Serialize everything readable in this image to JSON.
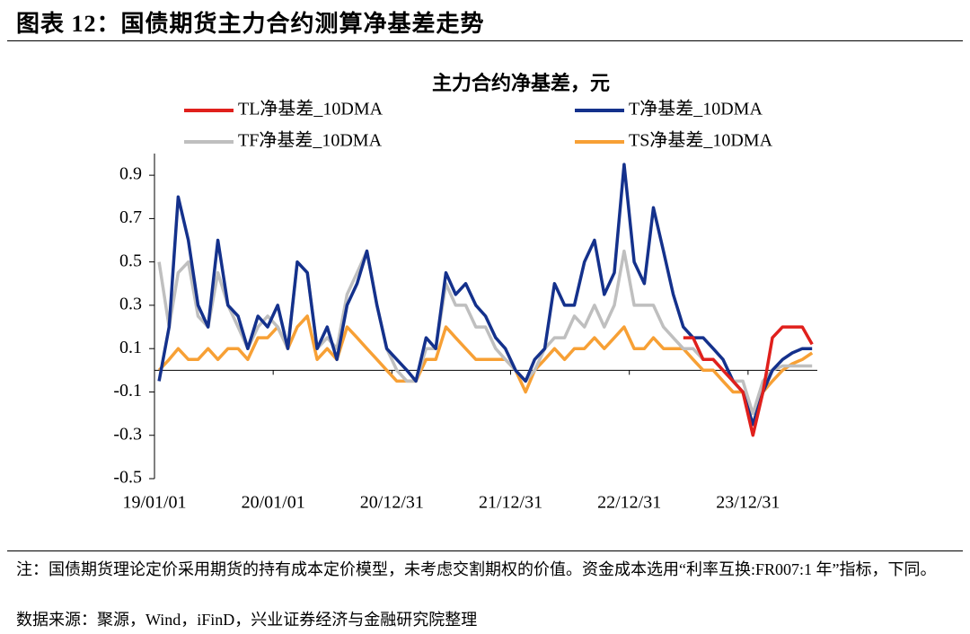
{
  "header": {
    "title": "图表 12：国债期货主力合约测算净基差走势"
  },
  "chart_data": {
    "type": "line",
    "title": "主力合约净基差，元",
    "x": [
      "19/01/15",
      "19/02/15",
      "19/03/15",
      "19/04/15",
      "19/05/15",
      "19/06/15",
      "19/07/15",
      "19/08/15",
      "19/09/15",
      "19/10/15",
      "19/11/15",
      "19/12/15",
      "20/01/15",
      "20/02/15",
      "20/03/15",
      "20/04/15",
      "20/05/15",
      "20/06/15",
      "20/07/15",
      "20/08/15",
      "20/09/15",
      "20/10/15",
      "20/11/15",
      "20/12/15",
      "21/01/15",
      "21/02/15",
      "21/03/15",
      "21/04/15",
      "21/05/15",
      "21/06/15",
      "21/07/15",
      "21/08/15",
      "21/09/15",
      "21/10/15",
      "21/11/15",
      "21/12/15",
      "22/01/15",
      "22/02/15",
      "22/03/15",
      "22/04/15",
      "22/05/15",
      "22/06/15",
      "22/07/15",
      "22/08/15",
      "22/09/15",
      "22/10/15",
      "22/11/15",
      "22/12/15",
      "23/01/15",
      "23/02/15",
      "23/03/15",
      "23/04/15",
      "23/05/15",
      "23/06/15",
      "23/07/15",
      "23/08/15",
      "23/09/15",
      "23/10/15",
      "23/11/15",
      "23/12/15",
      "24/01/15",
      "24/02/15",
      "24/03/15",
      "24/04/15",
      "24/05/15",
      "24/06/15",
      "24/07/15"
    ],
    "series": [
      {
        "name": "TL净基差_10DMA",
        "color": "#e0201c",
        "values": [
          null,
          null,
          null,
          null,
          null,
          null,
          null,
          null,
          null,
          null,
          null,
          null,
          null,
          null,
          null,
          null,
          null,
          null,
          null,
          null,
          null,
          null,
          null,
          null,
          null,
          null,
          null,
          null,
          null,
          null,
          null,
          null,
          null,
          null,
          null,
          null,
          null,
          null,
          null,
          null,
          null,
          null,
          null,
          null,
          null,
          null,
          null,
          null,
          null,
          null,
          null,
          null,
          null,
          0.15,
          0.15,
          0.05,
          0.05,
          0.0,
          -0.05,
          -0.1,
          -0.3,
          -0.1,
          0.15,
          0.2,
          0.2,
          0.2,
          0.12
        ]
      },
      {
        "name": "T净基差_10DMA",
        "color": "#14318c",
        "values": [
          -0.05,
          0.2,
          0.8,
          0.6,
          0.3,
          0.2,
          0.6,
          0.3,
          0.25,
          0.1,
          0.25,
          0.2,
          0.3,
          0.1,
          0.5,
          0.45,
          0.1,
          0.2,
          0.05,
          0.3,
          0.4,
          0.55,
          0.3,
          0.1,
          0.05,
          0.0,
          -0.05,
          0.15,
          0.1,
          0.45,
          0.35,
          0.4,
          0.3,
          0.25,
          0.15,
          0.1,
          0.0,
          -0.05,
          0.05,
          0.1,
          0.4,
          0.3,
          0.3,
          0.5,
          0.6,
          0.35,
          0.45,
          0.95,
          0.5,
          0.4,
          0.75,
          0.55,
          0.35,
          0.2,
          0.15,
          0.15,
          0.1,
          0.05,
          -0.05,
          -0.1,
          -0.25,
          -0.1,
          0.0,
          0.05,
          0.08,
          0.1,
          0.1
        ]
      },
      {
        "name": "TF净基差_10DMA",
        "color": "#bfbfbf",
        "values": [
          0.5,
          0.2,
          0.45,
          0.5,
          0.25,
          0.2,
          0.45,
          0.3,
          0.2,
          0.1,
          0.2,
          0.25,
          0.2,
          0.1,
          0.5,
          0.45,
          0.1,
          0.15,
          0.1,
          0.35,
          0.45,
          0.55,
          0.3,
          0.1,
          0.0,
          -0.05,
          -0.05,
          0.1,
          0.1,
          0.4,
          0.3,
          0.3,
          0.2,
          0.2,
          0.1,
          0.05,
          0.0,
          -0.05,
          0.0,
          0.1,
          0.15,
          0.15,
          0.25,
          0.2,
          0.3,
          0.2,
          0.3,
          0.55,
          0.3,
          0.3,
          0.3,
          0.2,
          0.15,
          0.1,
          0.1,
          0.05,
          0.05,
          0.0,
          -0.05,
          -0.05,
          -0.2,
          -0.05,
          0.0,
          0.02,
          0.02,
          0.02,
          0.02
        ]
      },
      {
        "name": "TS净基差_10DMA",
        "color": "#f7a035",
        "values": [
          0.0,
          0.05,
          0.1,
          0.05,
          0.05,
          0.1,
          0.05,
          0.1,
          0.1,
          0.05,
          0.15,
          0.15,
          0.2,
          0.1,
          0.2,
          0.25,
          0.05,
          0.1,
          0.05,
          0.2,
          0.15,
          0.1,
          0.05,
          0.0,
          -0.05,
          -0.05,
          -0.05,
          0.05,
          0.05,
          0.2,
          0.15,
          0.1,
          0.05,
          0.05,
          0.05,
          0.05,
          0.0,
          -0.1,
          0.0,
          0.05,
          0.1,
          0.05,
          0.1,
          0.1,
          0.15,
          0.1,
          0.15,
          0.2,
          0.1,
          0.1,
          0.15,
          0.1,
          0.1,
          0.1,
          0.05,
          0.0,
          0.0,
          -0.05,
          -0.1,
          -0.1,
          -0.25,
          -0.1,
          -0.05,
          0.0,
          0.03,
          0.05,
          0.08
        ]
      }
    ],
    "xlim": [
      "19/01/01",
      "24/07/31"
    ],
    "xticks": [
      "19/01/01",
      "20/01/01",
      "20/12/31",
      "21/12/31",
      "22/12/31",
      "23/12/31"
    ],
    "ylim": [
      -0.5,
      1.0
    ],
    "yticks": [
      -0.5,
      -0.3,
      -0.1,
      0.1,
      0.3,
      0.5,
      0.7,
      0.9
    ]
  },
  "notes": {
    "note": "注：国债期货理论定价采用期货的持有成本定价模型，未考虑交割期权的价值。资金成本选用“利率互换:FR007:1 年”指标，下同。",
    "source": "数据来源：聚源，Wind，iFinD，兴业证券经济与金融研究院整理"
  }
}
